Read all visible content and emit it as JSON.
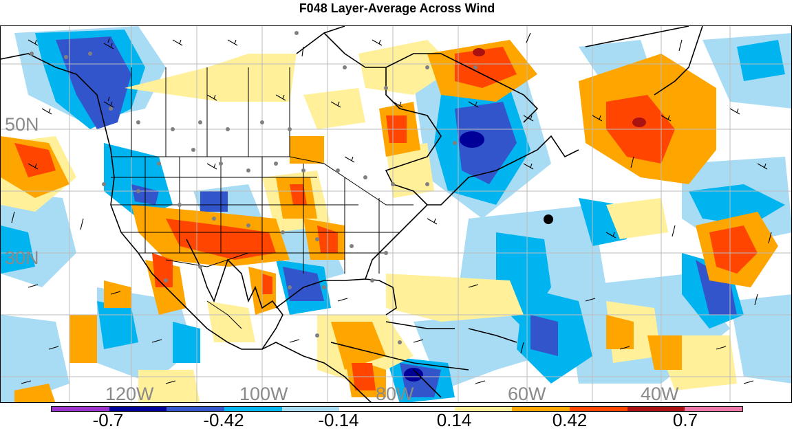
{
  "title": "F048 Layer-Average Across Wind",
  "map": {
    "lat_labels": [
      "50N",
      "30N"
    ],
    "lon_labels": [
      "120W",
      "100W",
      "80W",
      "60W",
      "40W"
    ],
    "marker": "center-dot"
  },
  "colorbar": {
    "colors": [
      "#9933cc",
      "#000099",
      "#3355cc",
      "#00b4f0",
      "#a8dcf5",
      "#ffffff",
      "#ffffff",
      "#fff099",
      "#ffa500",
      "#ff4500",
      "#aa1111",
      "#ee77aa"
    ],
    "labels": [
      "-0.7",
      "-0.42",
      "-0.14",
      "0.14",
      "0.42",
      "0.7"
    ]
  },
  "chart_data": {
    "type": "heatmap",
    "title": "F048 Layer-Average Across Wind",
    "levels": [
      -0.7,
      -0.56,
      -0.42,
      -0.28,
      -0.14,
      0,
      0.14,
      0.28,
      0.42,
      0.56,
      0.7
    ],
    "x_ticks": [
      "120W",
      "100W",
      "80W",
      "60W",
      "40W"
    ],
    "y_ticks": [
      "50N",
      "30N"
    ]
  }
}
